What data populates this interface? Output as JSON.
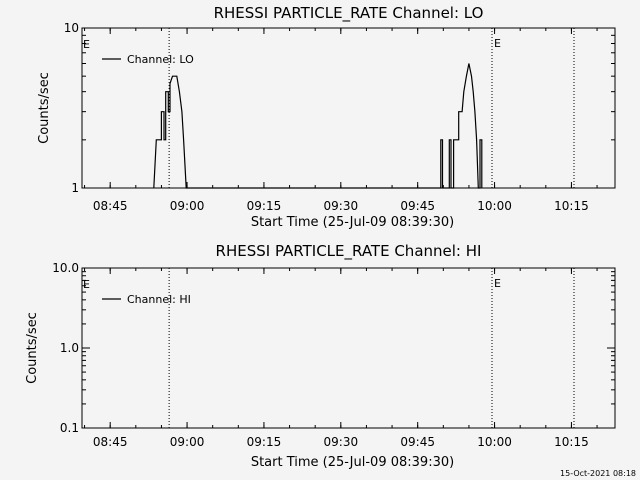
{
  "footer": {
    "timestamp": "15-Oct-2021 08:18"
  },
  "chart_data": [
    {
      "type": "line",
      "title": "RHESSI PARTICLE_RATE Channel: LO",
      "xlabel": "Start Time (25-Jul-09 08:39:30)",
      "ylabel": "Counts/sec",
      "y_scale": "log",
      "ylim": [
        1,
        10
      ],
      "y_ticks": [
        "1",
        "10"
      ],
      "x_ticks": [
        "08:45",
        "09:00",
        "09:15",
        "09:30",
        "09:45",
        "10:00",
        "10:15"
      ],
      "xlim": [
        "08:39:30",
        "10:23:30"
      ],
      "grid": false,
      "legend_position": "top-left",
      "markers": [
        {
          "time": "08:56:30",
          "label": ""
        },
        {
          "time": "09:59:30",
          "label": "E"
        },
        {
          "time": "10:15:30",
          "label": ""
        }
      ],
      "edge_label": "E",
      "series": [
        {
          "name": "Channel: LO",
          "color": "#000000",
          "points": [
            [
              "08:53:30",
              1.0
            ],
            [
              "08:54:00",
              2.0
            ],
            [
              "08:55:00",
              2.0
            ],
            [
              "08:55:00",
              3.0
            ],
            [
              "08:55:30",
              3.0
            ],
            [
              "08:55:30",
              2.0
            ],
            [
              "08:55:50",
              2.0
            ],
            [
              "08:55:50",
              4.0
            ],
            [
              "08:56:20",
              4.0
            ],
            [
              "08:56:20",
              3.0
            ],
            [
              "08:56:40",
              3.0
            ],
            [
              "08:56:40",
              4.5
            ],
            [
              "08:57:10",
              5.0
            ],
            [
              "08:58:00",
              5.0
            ],
            [
              "08:58:30",
              4.0
            ],
            [
              "08:59:00",
              3.0
            ],
            [
              "08:59:20",
              2.0
            ],
            [
              "08:59:50",
              1.0
            ],
            [
              "09:49:30",
              1.0
            ],
            [
              "09:49:30",
              2.0
            ],
            [
              "09:49:50",
              2.0
            ],
            [
              "09:49:50",
              1.0
            ],
            [
              "09:51:10",
              1.0
            ],
            [
              "09:51:10",
              2.0
            ],
            [
              "09:51:30",
              2.0
            ],
            [
              "09:51:30",
              1.0
            ],
            [
              "09:52:00",
              1.0
            ],
            [
              "09:52:00",
              2.0
            ],
            [
              "09:53:00",
              2.0
            ],
            [
              "09:53:00",
              3.0
            ],
            [
              "09:53:40",
              3.0
            ],
            [
              "09:54:00",
              4.0
            ],
            [
              "09:54:30",
              5.0
            ],
            [
              "09:55:00",
              6.0
            ],
            [
              "09:55:30",
              5.0
            ],
            [
              "09:55:50",
              4.0
            ],
            [
              "09:56:10",
              3.0
            ],
            [
              "09:56:30",
              2.0
            ],
            [
              "09:56:50",
              1.0
            ],
            [
              "09:57:10",
              1.0
            ],
            [
              "09:57:10",
              2.0
            ],
            [
              "09:57:30",
              2.0
            ],
            [
              "09:57:30",
              1.0
            ]
          ]
        }
      ]
    },
    {
      "type": "line",
      "title": "RHESSI PARTICLE_RATE Channel: HI",
      "xlabel": "Start Time (25-Jul-09 08:39:30)",
      "ylabel": "Counts/sec",
      "y_scale": "log",
      "ylim": [
        0.1,
        10
      ],
      "y_ticks": [
        "0.1",
        "1.0",
        "10.0"
      ],
      "x_ticks": [
        "08:45",
        "09:00",
        "09:15",
        "09:30",
        "09:45",
        "10:00",
        "10:15"
      ],
      "xlim": [
        "08:39:30",
        "10:23:30"
      ],
      "grid": false,
      "legend_position": "top-left",
      "markers": [
        {
          "time": "08:56:30",
          "label": ""
        },
        {
          "time": "09:59:30",
          "label": "E"
        },
        {
          "time": "10:15:30",
          "label": ""
        }
      ],
      "edge_label": "E",
      "series": [
        {
          "name": "Channel: HI",
          "color": "#000000",
          "points": []
        }
      ]
    }
  ]
}
